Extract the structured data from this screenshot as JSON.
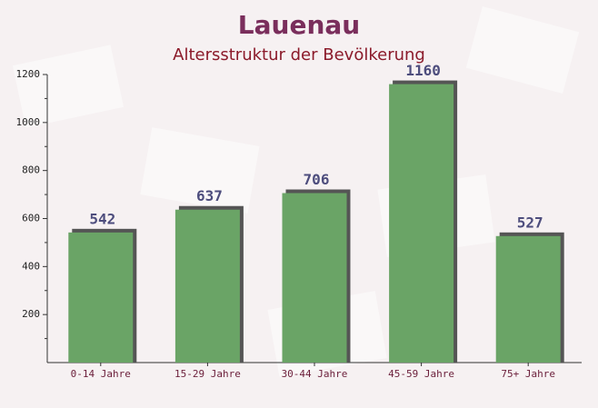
{
  "chart_data": {
    "type": "bar",
    "title": "Lauenau",
    "subtitle": "Altersstruktur der Bevölkerung",
    "categories": [
      "0-14 Jahre",
      "15-29 Jahre",
      "30-44 Jahre",
      "45-59 Jahre",
      "75+ Jahre"
    ],
    "values": [
      542,
      637,
      706,
      1160,
      527
    ],
    "color": "#6aa466",
    "ylim": [
      0,
      1200
    ],
    "yticks": [
      200,
      400,
      600,
      800,
      1000,
      1200
    ],
    "grid": false
  }
}
